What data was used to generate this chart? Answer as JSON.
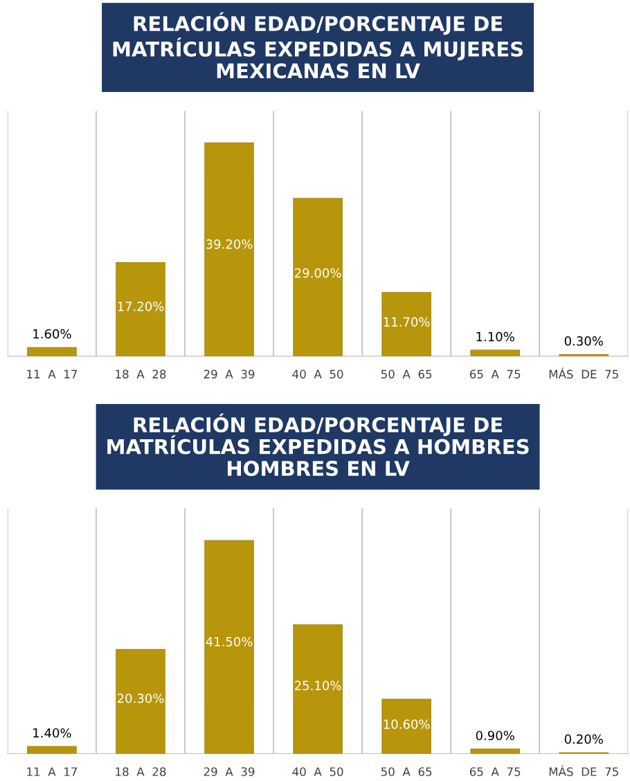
{
  "chart_data": [
    {
      "type": "bar",
      "title": "RELACIÓN EDAD/PORCENTAJE DE\nMATRÍCULAS EXPEDIDAS A MUJERES\nMEXICANAS EN LV",
      "categories": [
        "11 A 17",
        "18 A 28",
        "29 A 39",
        "40 A 50",
        "50 A 65",
        "65 A 75",
        "MÁS DE 75"
      ],
      "values": [
        1.6,
        17.2,
        39.2,
        29.0,
        11.7,
        1.1,
        0.3
      ],
      "value_labels": [
        "1.60%",
        "17.20%",
        "39.20%",
        "29.00%",
        "11.70%",
        "1.10%",
        "0.30%"
      ],
      "color": "#b8960c",
      "grid": "x"
    },
    {
      "type": "bar",
      "title": "RELACIÓN EDAD/PORCENTAJE DE\nMATRÍCULAS EXPEDIDAS A HOMBRES\nHOMBRES EN LV",
      "categories": [
        "11 A 17",
        "18 A 28",
        "29 A 39",
        "40 A 50",
        "50 A 65",
        "65 A 75",
        "MÁS DE 75"
      ],
      "values": [
        1.4,
        20.3,
        41.5,
        25.1,
        10.6,
        0.9,
        0.2
      ],
      "value_labels": [
        "1.40%",
        "20.30%",
        "41.50%",
        "25.10%",
        "10.60%",
        "0.90%",
        "0.20%"
      ],
      "color": "#b8960c",
      "grid": "x"
    }
  ]
}
